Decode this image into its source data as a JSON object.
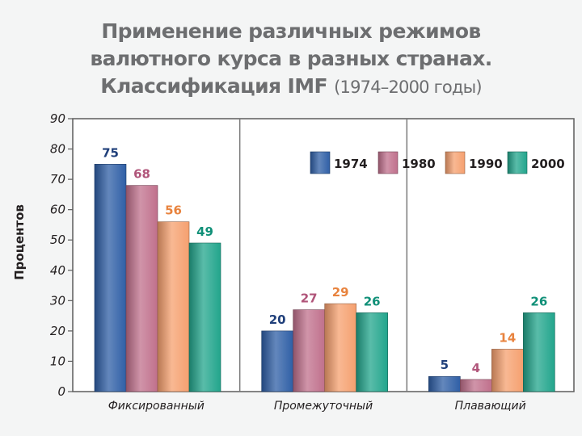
{
  "title": {
    "line1": "Применение различных режимов",
    "line2": "валютного курса в разных странах.",
    "line3": "Классификация IMF",
    "line3_suffix": "(1974–2000 годы)"
  },
  "chart_data": {
    "type": "bar",
    "title": "Применение различных режимов валютного курса в разных странах. Классификация IMF (1974–2000 годы)",
    "xlabel": "",
    "ylabel": "Процентов",
    "ylim": [
      0,
      90
    ],
    "yticks": [
      0,
      10,
      20,
      30,
      40,
      50,
      60,
      70,
      80,
      90
    ],
    "categories": [
      "Фиксированный",
      "Промежуточный",
      "Плавающий"
    ],
    "series": [
      {
        "name": "1974",
        "values": [
          75,
          20,
          5
        ],
        "color": "#2f5fa6",
        "label_color": "#1f3f7a"
      },
      {
        "name": "1980",
        "values": [
          68,
          27,
          4
        ],
        "color": "#c0708c",
        "label_color": "#b0557a"
      },
      {
        "name": "1990",
        "values": [
          56,
          29,
          14
        ],
        "color": "#f5a06f",
        "label_color": "#e8833e"
      },
      {
        "name": "2000",
        "values": [
          49,
          26,
          26
        ],
        "color": "#22a58c",
        "label_color": "#109078"
      }
    ],
    "grid": "vertical separators",
    "legend": "top-right"
  }
}
